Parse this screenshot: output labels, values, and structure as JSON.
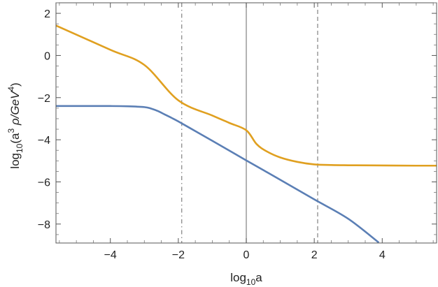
{
  "chart_data": {
    "type": "line",
    "title": "",
    "xlabel": {
      "base": "log",
      "sub": "10",
      "rest": "a"
    },
    "ylabel": {
      "prefix": "log",
      "sub": "10",
      "open": "(a",
      "sup1": "3",
      "mid": " ρ/GeV",
      "sup2": "4",
      "close": ")"
    },
    "xlim": [
      -5.6,
      5.6
    ],
    "ylim": [
      -8.9,
      2.5
    ],
    "xticks": [
      -4,
      -2,
      0,
      2,
      4
    ],
    "xtick_labels": [
      "−4",
      "−2",
      "0",
      "2",
      "4"
    ],
    "yticks": [
      2,
      0,
      -2,
      -4,
      -6,
      -8
    ],
    "ytick_labels": [
      "2",
      "0",
      "−2",
      "−4",
      "−6",
      "−8"
    ],
    "vertical_lines": [
      {
        "x": -1.9,
        "style": "dashdot"
      },
      {
        "x": 0,
        "style": "solid"
      },
      {
        "x": 2.1,
        "style": "dashed"
      }
    ],
    "series": [
      {
        "color": "#e0a020",
        "x": [
          -5.6,
          -4,
          -3,
          -2,
          -1,
          -0.5,
          0,
          0.3,
          0.6,
          1.0,
          1.5,
          2.0,
          2.5,
          3,
          4,
          5,
          5.6
        ],
        "y": [
          1.42,
          0.27,
          -0.45,
          -2.13,
          -2.85,
          -3.2,
          -3.55,
          -4.2,
          -4.55,
          -4.84,
          -5.05,
          -5.17,
          -5.2,
          -5.21,
          -5.22,
          -5.23,
          -5.23
        ]
      },
      {
        "color": "#5b7fb5",
        "x": [
          -5.6,
          -5,
          -4,
          -3.5,
          -3,
          -2.8,
          -2.6,
          -2.4,
          -2.2,
          -2.0,
          -1.5,
          -1,
          0,
          1,
          2,
          3,
          3.9
        ],
        "y": [
          -2.4,
          -2.4,
          -2.4,
          -2.41,
          -2.45,
          -2.52,
          -2.64,
          -2.8,
          -2.96,
          -3.13,
          -3.59,
          -4.05,
          -4.98,
          -5.9,
          -6.83,
          -7.75,
          -8.88
        ]
      }
    ]
  }
}
